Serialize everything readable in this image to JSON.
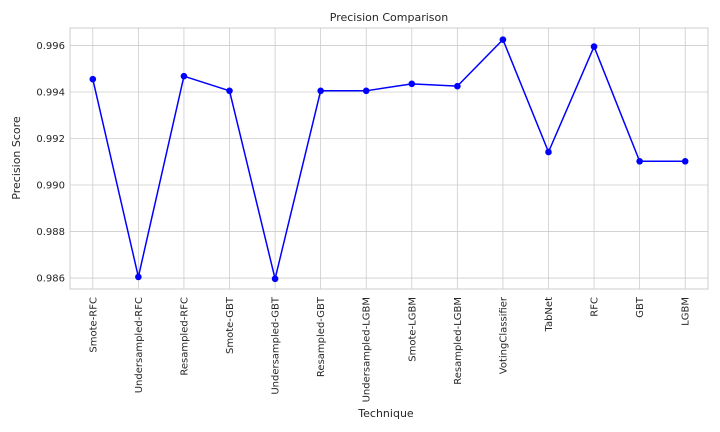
{
  "chart_data": {
    "type": "line",
    "title": "Precision Comparison",
    "xlabel": "Technique",
    "ylabel": "Precision Score",
    "categories": [
      "Smote-RFC",
      "Undersampled-RFC",
      "Resampled-RFC",
      "Smote-GBT",
      "Undersampled-GBT",
      "Resampled-GBT",
      "Undersampled-LGBM",
      "Smote-LGBM",
      "Resampled-LGBM",
      "VotingClassifier",
      "TabNet",
      "RFC",
      "GBT",
      "LGBM"
    ],
    "series": [
      {
        "values": [
          0.99455,
          0.98605,
          0.99468,
          0.99405,
          0.98597,
          0.99405,
          0.99405,
          0.99435,
          0.99425,
          0.99625,
          0.99142,
          0.99595,
          0.99102,
          0.99102
        ],
        "color": "#0000ff",
        "marker": "circle"
      }
    ],
    "ylim": [
      0.98553,
      0.99675
    ],
    "yticks": [
      0.986,
      0.988,
      0.99,
      0.992,
      0.994,
      0.996
    ],
    "ytick_labels": [
      "0.986",
      "0.988",
      "0.990",
      "0.992",
      "0.994",
      "0.996"
    ],
    "grid": true,
    "legend": "none"
  }
}
